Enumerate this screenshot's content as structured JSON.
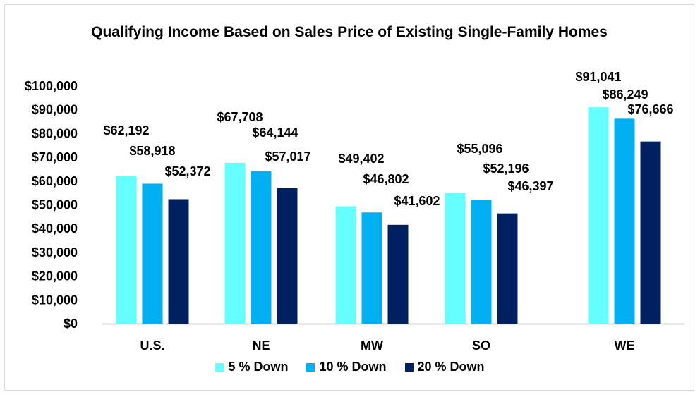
{
  "chart_data": {
    "type": "bar",
    "title": "Qualifying Income Based on Sales Price of Existing Single-Family Homes",
    "categories": [
      "U.S.",
      "NE",
      "MW",
      "SO",
      "WE"
    ],
    "series": [
      {
        "name": "5 % Down",
        "color": "#66FFFF",
        "values": [
          62192,
          67708,
          49402,
          55096,
          91041
        ],
        "labels": [
          "$62,192",
          "$67,708",
          "$49,402",
          "$55,096",
          "$91,041"
        ]
      },
      {
        "name": "10 % Down",
        "color": "#00B0F0",
        "values": [
          58918,
          64144,
          46802,
          52196,
          86249
        ],
        "labels": [
          "$58,918",
          "$64,144",
          "$46,802",
          "$52,196",
          "$86,249"
        ]
      },
      {
        "name": "20 % Down",
        "color": "#002060",
        "values": [
          52372,
          57017,
          41602,
          46397,
          76666
        ],
        "labels": [
          "$52,372",
          "$57,017",
          "$41,602",
          "$46,397",
          "$76,666"
        ]
      }
    ],
    "ylim": [
      0,
      100000
    ],
    "yticks": [
      "$0",
      "$10,000",
      "$20,000",
      "$30,000",
      "$40,000",
      "$50,000",
      "$60,000",
      "$70,000",
      "$80,000",
      "$90,000",
      "$100,000"
    ],
    "grid": false,
    "legend": "bottom",
    "xlabel": "",
    "ylabel": ""
  }
}
